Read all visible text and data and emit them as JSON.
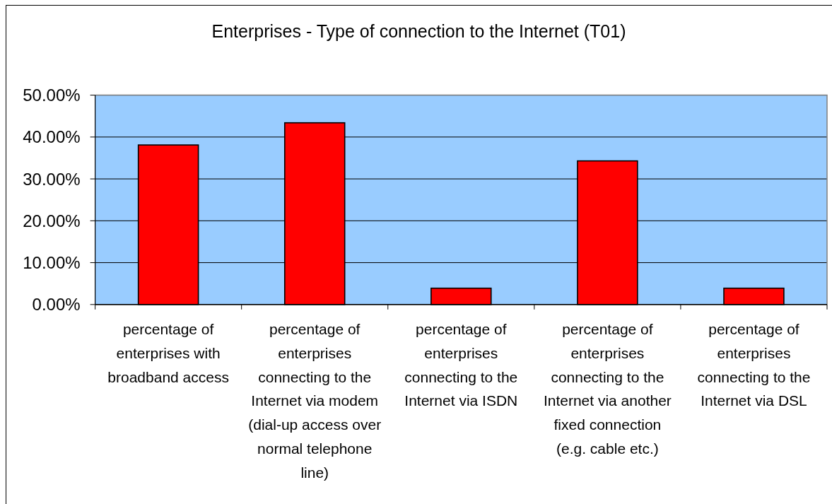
{
  "chart_data": {
    "type": "bar",
    "title": "Enterprises - Type of connection to the Internet (T01)",
    "categories": [
      "percentage of enterprises with broadband access",
      "percentage of enterprises connecting to the Internet via modem (dial-up access over normal telephone line)",
      "percentage of enterprises connecting to the Internet via ISDN",
      "percentage of enterprises connecting to the Internet via another fixed connection (e.g. cable etc.)",
      "percentage of enterprises connecting to the Internet via DSL"
    ],
    "values": [
      38.1,
      43.4,
      3.9,
      34.3,
      3.9
    ],
    "color": "#ff0000",
    "ylim": [
      0,
      50
    ],
    "yticks": [
      {
        "value": 0,
        "label": "0.00%"
      },
      {
        "value": 10,
        "label": "10.00%"
      },
      {
        "value": 20,
        "label": "20.00%"
      },
      {
        "value": 30,
        "label": "30.00%"
      },
      {
        "value": 40,
        "label": "40.00%"
      },
      {
        "value": 50,
        "label": "50.00%"
      }
    ],
    "grid": "y"
  }
}
